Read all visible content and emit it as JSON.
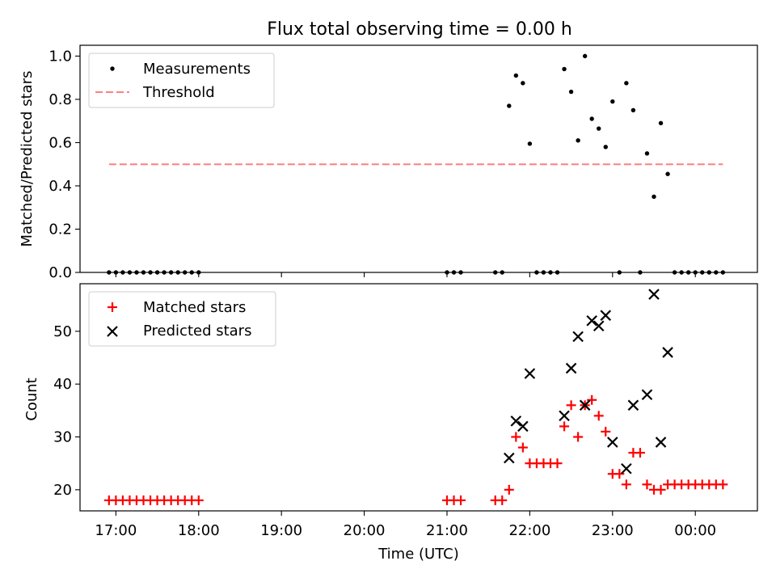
{
  "figure": {
    "title": "Flux total observing time = 0.00 h",
    "xlabel": "Time (UTC)"
  },
  "colors": {
    "threshold": "#ff7f7f",
    "matched": "#ff0000",
    "predicted": "#000000",
    "measurement": "#000000"
  },
  "chart_data": [
    {
      "type": "scatter",
      "ylabel": "Matched/Predicted stars",
      "ylim": [
        0,
        1.05
      ],
      "xlim": [
        "16:34",
        "00:45"
      ],
      "yticks": [
        "0.0",
        "0.2",
        "0.4",
        "0.6",
        "0.8",
        "1.0"
      ],
      "legend": {
        "placement": "upper-left",
        "entries": [
          "Measurements",
          "Threshold"
        ]
      },
      "series": [
        {
          "name": "Measurements",
          "marker": "dot",
          "x": [
            "16:55",
            "17:00",
            "17:05",
            "17:10",
            "17:15",
            "17:20",
            "17:25",
            "17:30",
            "17:35",
            "17:40",
            "17:45",
            "17:50",
            "17:55",
            "18:00",
            "21:00",
            "21:05",
            "21:10",
            "21:35",
            "21:40",
            "21:45",
            "21:50",
            "21:55",
            "22:00",
            "22:05",
            "22:10",
            "22:15",
            "22:20",
            "22:25",
            "22:30",
            "22:35",
            "22:40",
            "22:45",
            "22:50",
            "22:55",
            "23:00",
            "23:05",
            "23:10",
            "23:15",
            "23:20",
            "23:25",
            "23:30",
            "23:35",
            "23:40",
            "23:45",
            "23:50",
            "23:55",
            "00:00",
            "00:05",
            "00:10",
            "00:15",
            "00:20"
          ],
          "y": [
            0,
            0,
            0,
            0,
            0,
            0,
            0,
            0,
            0,
            0,
            0,
            0,
            0,
            0,
            0,
            0,
            0,
            0,
            0,
            0.77,
            0.91,
            0.875,
            0.595,
            0,
            0,
            0,
            0,
            0.94,
            0.835,
            0.61,
            1.0,
            0.71,
            0.665,
            0.58,
            0.79,
            0,
            0.875,
            0.75,
            0,
            0.55,
            0.35,
            0.69,
            0.455,
            0,
            0,
            0,
            0,
            0,
            0,
            0,
            0
          ]
        },
        {
          "name": "Threshold",
          "marker": "dashed-line",
          "x": [
            "16:55",
            "00:20"
          ],
          "y": [
            0.5,
            0.5
          ]
        }
      ]
    },
    {
      "type": "scatter",
      "ylabel": "Count",
      "ylim": [
        16,
        59
      ],
      "xlim": [
        "16:34",
        "00:45"
      ],
      "yticks": [
        "20",
        "30",
        "40",
        "50"
      ],
      "xticks": [
        "17:00",
        "18:00",
        "19:00",
        "20:00",
        "21:00",
        "22:00",
        "23:00",
        "00:00"
      ],
      "legend": {
        "placement": "upper-left",
        "entries": [
          "Matched stars",
          "Predicted stars"
        ]
      },
      "series": [
        {
          "name": "Matched stars",
          "marker": "plus",
          "x": [
            "16:55",
            "17:00",
            "17:05",
            "17:10",
            "17:15",
            "17:20",
            "17:25",
            "17:30",
            "17:35",
            "17:40",
            "17:45",
            "17:50",
            "17:55",
            "18:00",
            "21:00",
            "21:05",
            "21:10",
            "21:35",
            "21:40",
            "21:45",
            "21:50",
            "21:55",
            "22:00",
            "22:05",
            "22:10",
            "22:15",
            "22:20",
            "22:25",
            "22:30",
            "22:35",
            "22:40",
            "22:45",
            "22:50",
            "22:55",
            "23:00",
            "23:05",
            "23:10",
            "23:15",
            "23:20",
            "23:25",
            "23:30",
            "23:35",
            "23:40",
            "23:45",
            "23:50",
            "23:55",
            "00:00",
            "00:05",
            "00:10",
            "00:15",
            "00:20"
          ],
          "y": [
            18,
            18,
            18,
            18,
            18,
            18,
            18,
            18,
            18,
            18,
            18,
            18,
            18,
            18,
            18,
            18,
            18,
            18,
            18,
            20,
            30,
            28,
            25,
            25,
            25,
            25,
            25,
            32,
            36,
            30,
            36,
            37,
            34,
            31,
            23,
            23,
            21,
            27,
            27,
            21,
            20,
            20,
            21,
            21,
            21,
            21,
            21,
            21,
            21,
            21,
            21
          ]
        },
        {
          "name": "Predicted stars",
          "marker": "x",
          "x": [
            "21:45",
            "21:50",
            "21:55",
            "22:00",
            "22:25",
            "22:30",
            "22:35",
            "22:40",
            "22:45",
            "22:50",
            "22:55",
            "23:00",
            "23:10",
            "23:15",
            "23:25",
            "23:30",
            "23:35",
            "23:40"
          ],
          "y": [
            26,
            33,
            32,
            42,
            34,
            43,
            49,
            36,
            52,
            51,
            53,
            29,
            24,
            36,
            38,
            57,
            29,
            46
          ]
        }
      ]
    }
  ]
}
